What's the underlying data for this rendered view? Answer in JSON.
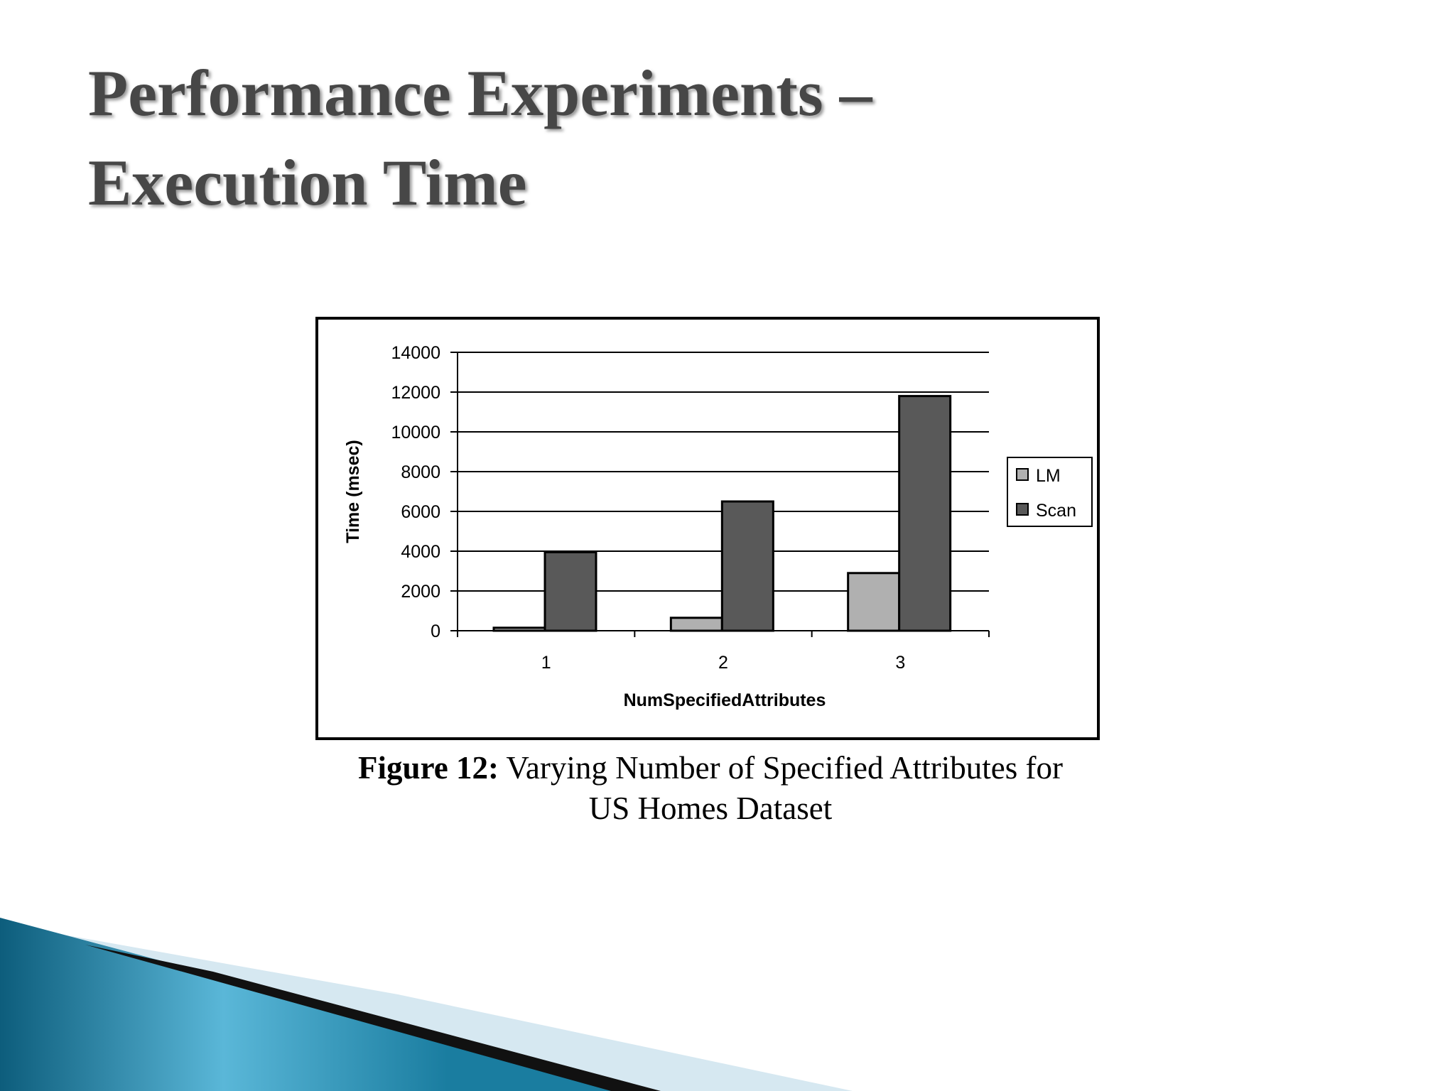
{
  "slide_title": [
    "Performance Experiments –",
    "Execution Time"
  ],
  "chart_data": {
    "type": "bar",
    "x_label": "NumSpecifiedAttributes",
    "y_label": "Time (msec)",
    "categories": [
      "1",
      "2",
      "3"
    ],
    "series": [
      {
        "name": "LM",
        "color": "#b0b0b0",
        "values": [
          150,
          650,
          2900
        ]
      },
      {
        "name": "Scan",
        "color": "#595959",
        "values": [
          3950,
          6500,
          11800
        ]
      }
    ],
    "ylim": [
      0,
      14000
    ],
    "yticks": [
      0,
      2000,
      4000,
      6000,
      8000,
      10000,
      12000,
      14000
    ],
    "grid": true,
    "legend": "right"
  },
  "caption": {
    "label": "Figure 12:",
    "text_line1": "Varying Number of Specified Attributes for",
    "text_line2": "US Homes Dataset"
  }
}
